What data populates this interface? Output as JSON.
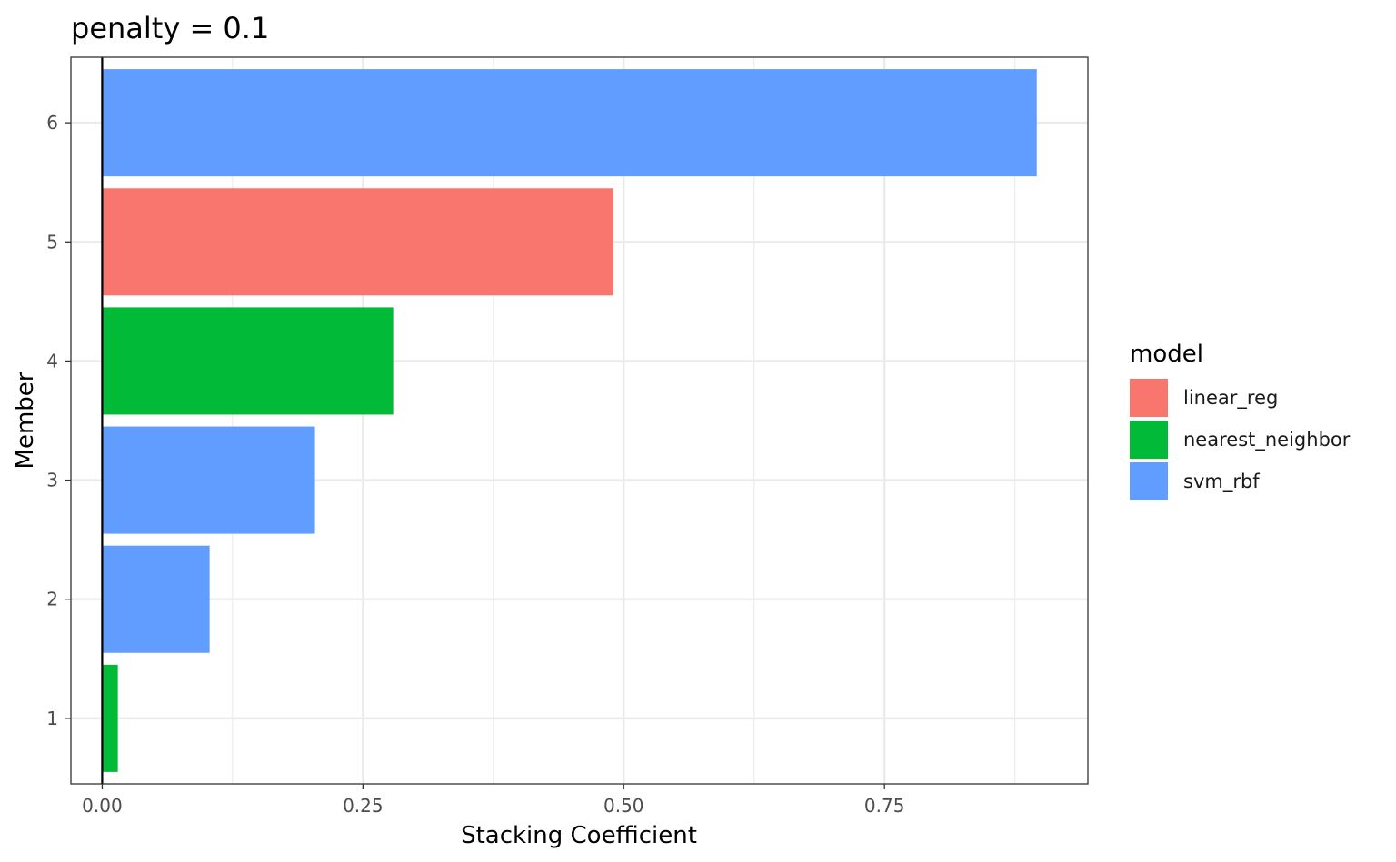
{
  "chart_data": {
    "type": "bar",
    "orientation": "horizontal",
    "title": "penalty = 0.1",
    "xlabel": "Stacking Coefficient",
    "ylabel": "Member",
    "xlim": [
      -0.03,
      0.945
    ],
    "ylim": [
      0.45,
      6.55
    ],
    "x_ticks": [
      0.0,
      0.25,
      0.5,
      0.75
    ],
    "x_tick_labels": [
      "0.00",
      "0.25",
      "0.50",
      "0.75"
    ],
    "y_ticks": [
      1,
      2,
      3,
      4,
      5,
      6
    ],
    "y_tick_labels": [
      "1",
      "2",
      "3",
      "4",
      "5",
      "6"
    ],
    "grid": true,
    "reference_line_x": 0,
    "legend": {
      "title": "model",
      "placement": "right",
      "entries": [
        {
          "label": "linear_reg",
          "color": "#F8766D"
        },
        {
          "label": "nearest_neighbor",
          "color": "#00BA38"
        },
        {
          "label": "svm_rbf",
          "color": "#619CFF"
        }
      ]
    },
    "bars": [
      {
        "member": 1,
        "value": 0.015,
        "model": "nearest_neighbor"
      },
      {
        "member": 2,
        "value": 0.103,
        "model": "svm_rbf"
      },
      {
        "member": 3,
        "value": 0.204,
        "model": "svm_rbf"
      },
      {
        "member": 4,
        "value": 0.279,
        "model": "nearest_neighbor"
      },
      {
        "member": 5,
        "value": 0.49,
        "model": "linear_reg"
      },
      {
        "member": 6,
        "value": 0.896,
        "model": "svm_rbf"
      }
    ]
  }
}
